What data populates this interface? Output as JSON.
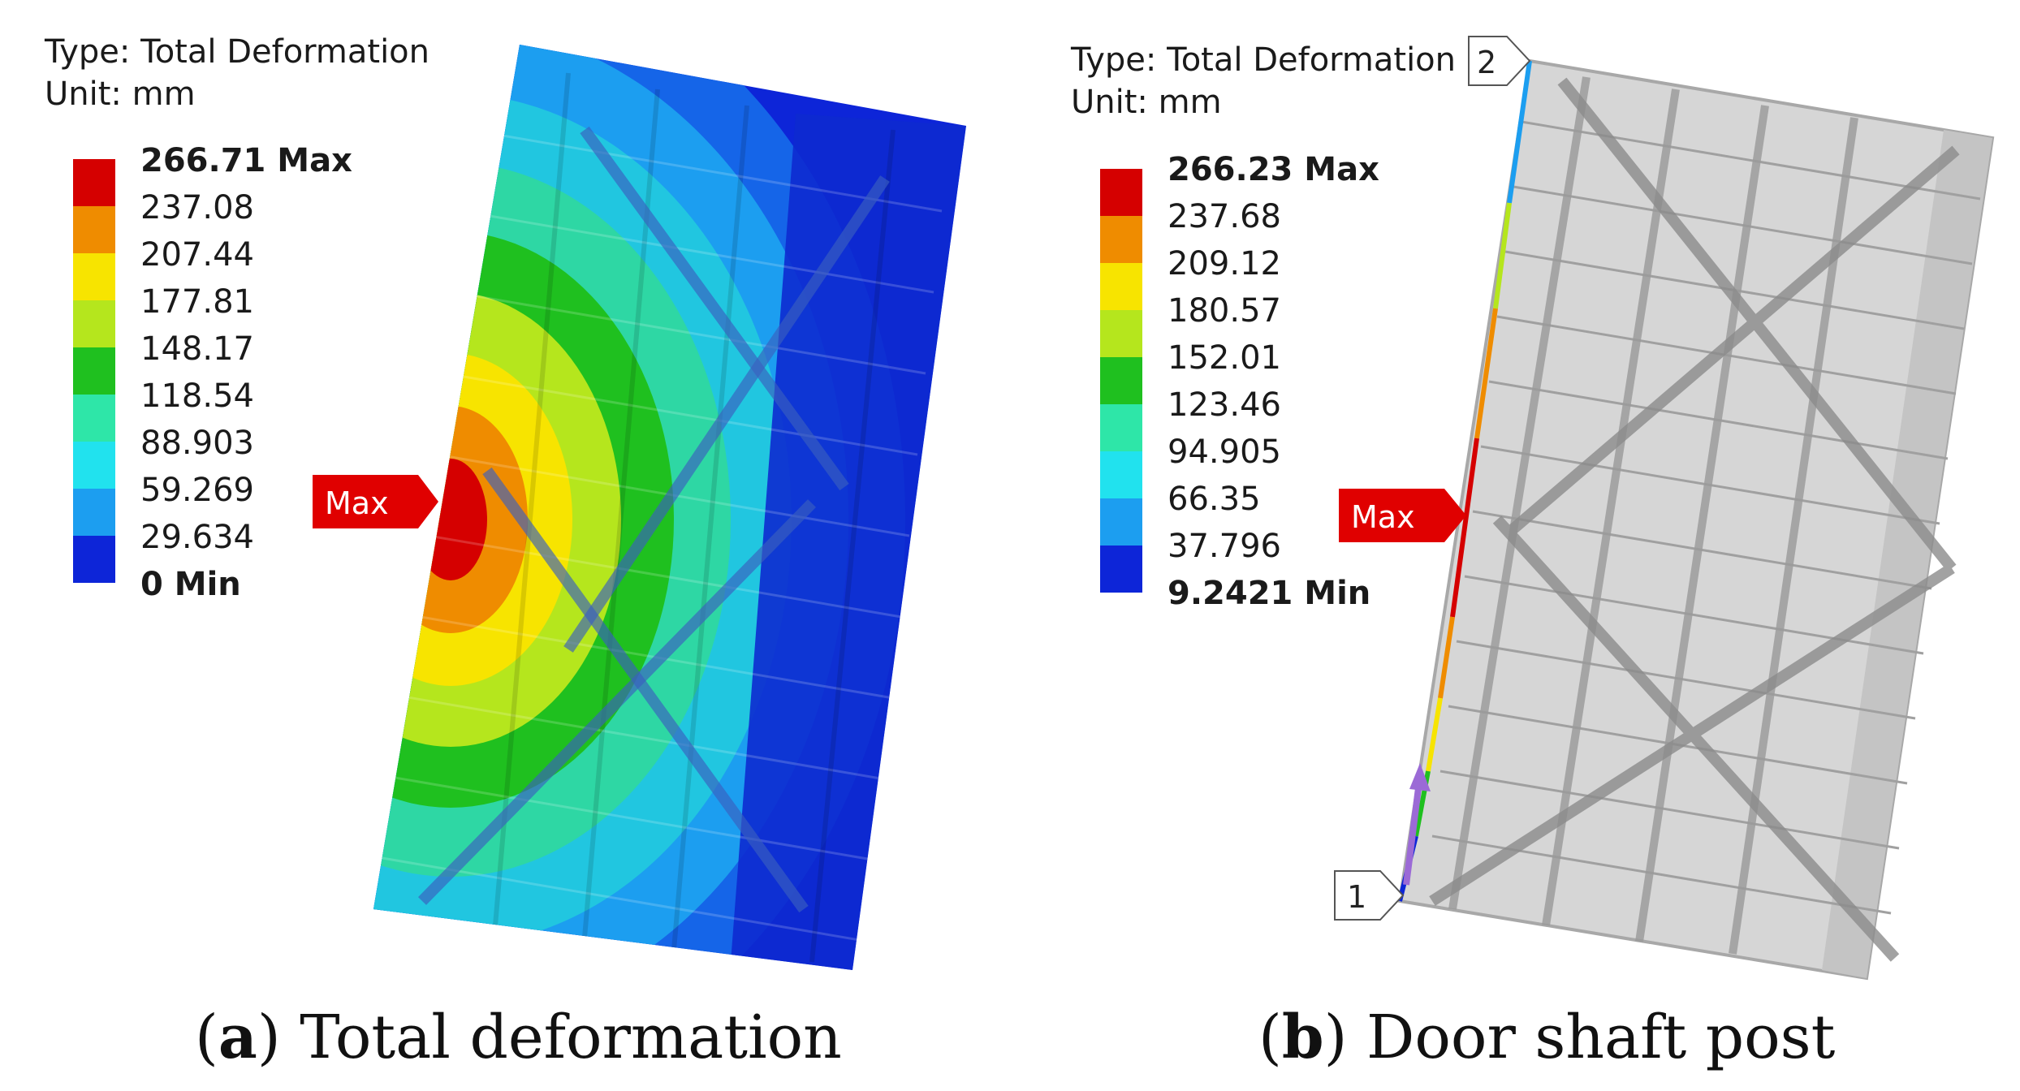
{
  "panels": [
    {
      "type_label": "Type: Total Deformation",
      "unit_label": "Unit: mm",
      "legend": [
        "266.71 Max",
        "237.08",
        "207.44",
        "177.81",
        "148.17",
        "118.54",
        "88.903",
        "59.269",
        "29.634",
        "0 Min"
      ],
      "max_marker": "Max",
      "caption_letter": "a",
      "caption_text": "Total deformation"
    },
    {
      "type_label": "Type: Total Deformation",
      "unit_label": "Unit: mm",
      "legend": [
        "266.23 Max",
        "237.68",
        "209.12",
        "180.57",
        "152.01",
        "123.46",
        "94.905",
        "66.35",
        "37.796",
        "9.2421 Min"
      ],
      "max_marker": "Max",
      "probe_top": "2",
      "probe_bottom": "1",
      "caption_letter": "b",
      "caption_text": "Door shaft post"
    }
  ],
  "colors": {
    "scale": [
      "#d50000",
      "#ef8c00",
      "#f7e400",
      "#b5e61d",
      "#1fc01f",
      "#2ee6a8",
      "#21e2ee",
      "#1c9ef0",
      "#0d25d8"
    ],
    "marker": "#e00000",
    "background": "#ffffff"
  }
}
